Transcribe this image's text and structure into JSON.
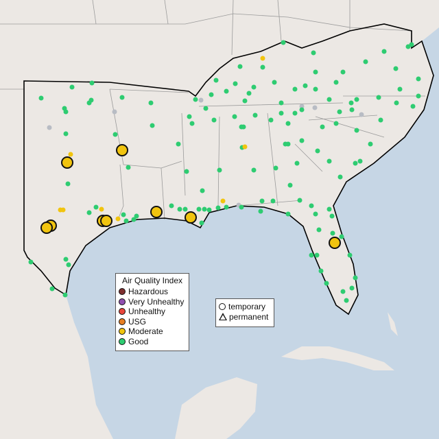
{
  "map": {
    "colors": {
      "ocean": "#c6d6e5",
      "land": "#ece8e4",
      "boundary": "#000000",
      "state_lines": "#9a9a9a",
      "inactive": "#b8bcc4"
    }
  },
  "aqi_legend": {
    "title": "Air Quality Index",
    "items": [
      {
        "label": "Hazardous",
        "color": "#7e3030"
      },
      {
        "label": "Very Unhealthy",
        "color": "#8f4fb0"
      },
      {
        "label": "Unhealthy",
        "color": "#e8463c"
      },
      {
        "label": "USG",
        "color": "#e67e22"
      },
      {
        "label": "Moderate",
        "color": "#f1c40f"
      },
      {
        "label": "Good",
        "color": "#2ecc71"
      }
    ]
  },
  "type_legend": {
    "items": [
      {
        "label": "temporary",
        "icon": "circle-icon"
      },
      {
        "label": "permanent",
        "icon": "triangle-icon"
      }
    ]
  }
}
